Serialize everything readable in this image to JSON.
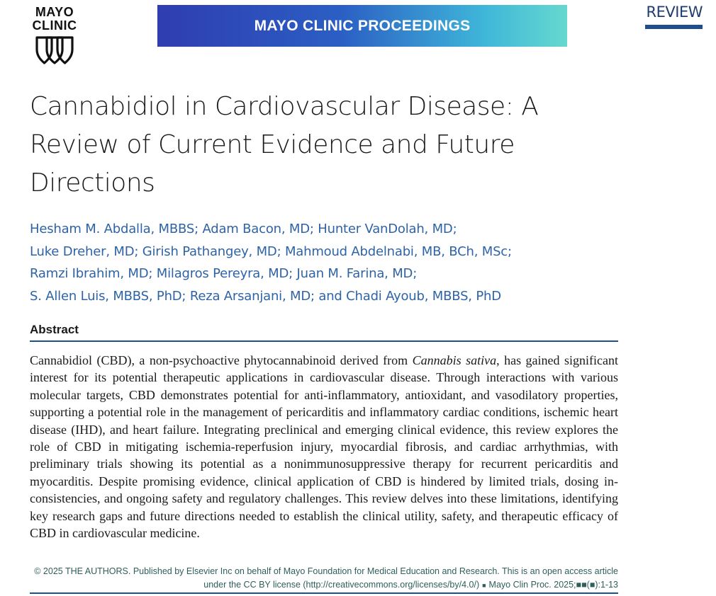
{
  "logo": {
    "text": "MAYO\nCLINIC"
  },
  "banner": {
    "title": "MAYO CLINIC PROCEEDINGS"
  },
  "section_label": "REVIEW",
  "article": {
    "title": "Cannabidiol in Cardiovascular Disease: A Review of Current Evidence and Future Directions",
    "authors": [
      "Hesham M. Abdalla, MBBS; Adam Bacon, MD; Hunter VanDolah, MD;",
      "Luke Dreher, MD; Girish Pathangey, MD; Mahmoud Abdelnabi, MB, BCh, MSc;",
      "Ramzi Ibrahim, MD; Milagros Pereyra, MD; Juan M. Farina, MD;",
      "S. Allen Luis, MBBS, PhD; Reza Arsanjani, MD; and Chadi Ayoub, MBBS, PhD"
    ]
  },
  "abstract": {
    "heading": "Abstract",
    "text_before_italic": "Cannabidiol (CBD), a non-psychoactive phytocannabinoid derived from ",
    "italic": "Cannabis sativa",
    "text_after_italic": ", has gained significant interest for its potential therapeutic applications in cardiovascular disease. Through in­teractions with various molecular targets, CBD demonstrates potential for anti-inflammatory, anti­oxidant, and vasodilatory properties, supporting a potential role in the management of pericarditis and inflammatory cardiac conditions, ischemic heart disease (IHD), and heart failure. Integrating preclinical and emerging clinical evidence, this review explores the role of CBD in mitigating ischemia-reperfusion injury, myocardial fibrosis, and cardiac arrhythmias, with preliminary trials showing its potential as a nonimmunosuppressive therapy for recurrent pericarditis and myocarditis. Despite promising evidence, clinical application of CBD is hindered by limited trials, dosing in­consistencies, and ongoing safety and regulatory challenges. This review delves into these limitations, identifying key research gaps and future directions needed to establish the clinical utility, safety, and therapeutic efficacy of CBD in cardiovascular medicine."
  },
  "license": {
    "line1": "© 2025 THE AUTHORS. Published by Elsevier Inc on behalf of Mayo Foundation for Medical Education and Research. This is an open access article",
    "line2_a": "under the CC BY license (http://creativecommons.org/licenses/by/4.0/)",
    "separator": "■",
    "line2_b": "Mayo Clin Proc. 2025;■■(■):1-13"
  },
  "colors": {
    "accent_blue": "#1e4f8c",
    "author_blue": "#2e63a6",
    "license_teal": "#2f5f5a"
  }
}
